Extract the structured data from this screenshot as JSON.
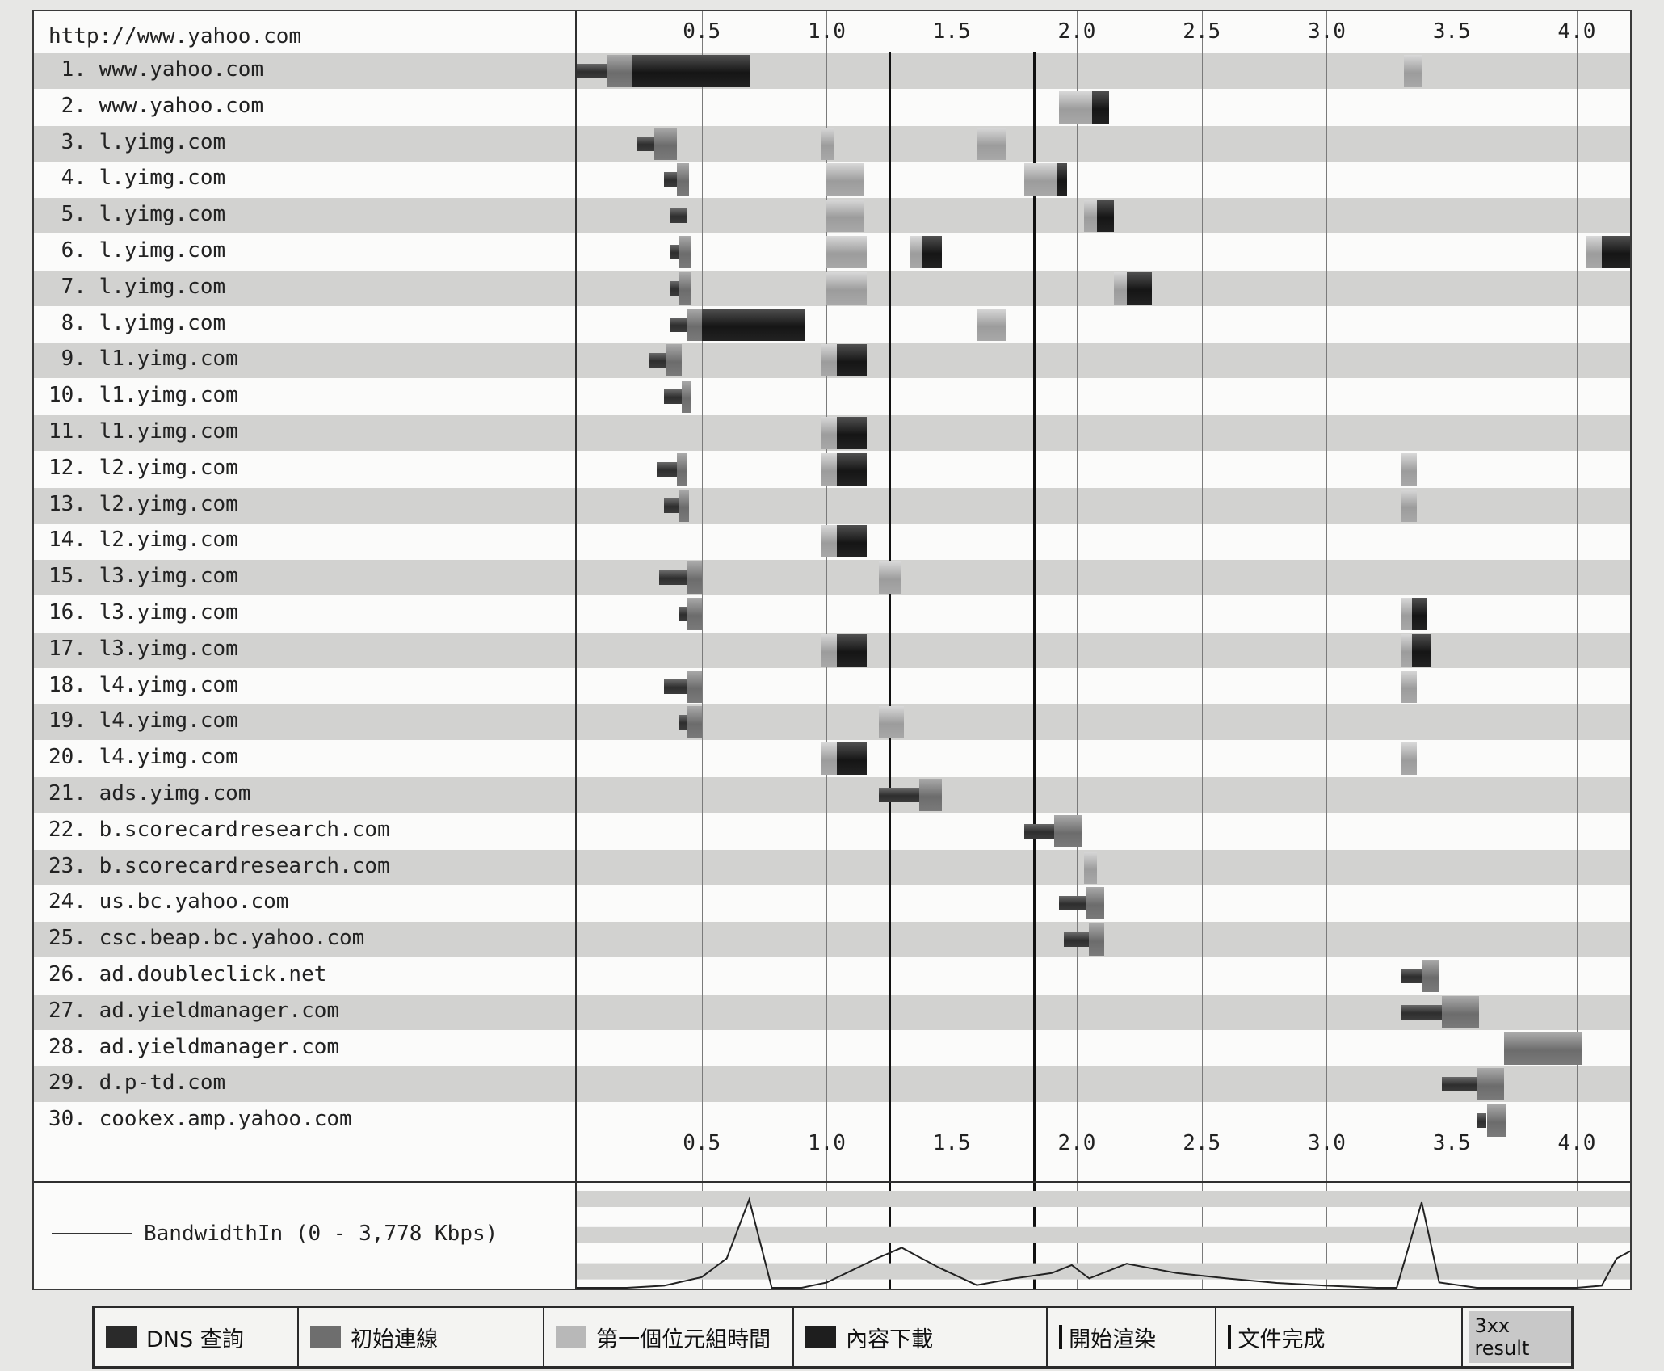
{
  "page": {
    "url": "http://www.yahoo.com",
    "bandwidth_label": "BandwidthIn (0 - 3,778 Kbps)"
  },
  "legend": {
    "dns": "DNS 查詢",
    "connect": "初始連線",
    "ttfb": "第一個位元組時間",
    "download": "內容下載",
    "start_render": "開始渲染",
    "doc_complete": "文件完成",
    "redirect": "3xx result"
  },
  "chart_data": {
    "type": "waterfall",
    "x_ticks": [
      "0.5",
      "1.0",
      "1.5",
      "2.0",
      "2.5",
      "3.0",
      "3.5",
      "4.0"
    ],
    "x_tick_values": [
      0.5,
      1.0,
      1.5,
      2.0,
      2.5,
      3.0,
      3.5,
      4.0
    ],
    "xlim": [
      0.0,
      4.22
    ],
    "unit": "seconds",
    "markers": {
      "start_render": 1.25,
      "document_complete": 1.83
    },
    "requests": [
      {
        "label": " 1. www.yahoo.com",
        "segments": [
          [
            "dns",
            0.0,
            0.12
          ],
          [
            "connect",
            0.12,
            0.22
          ],
          [
            "download",
            0.22,
            0.69
          ],
          [
            "ttfb",
            3.31,
            3.38
          ]
        ]
      },
      {
        "label": " 2. www.yahoo.com",
        "segments": [
          [
            "ttfb",
            1.93,
            2.06
          ],
          [
            "download",
            2.06,
            2.13
          ]
        ]
      },
      {
        "label": " 3. l.yimg.com",
        "segments": [
          [
            "dns",
            0.24,
            0.31
          ],
          [
            "connect",
            0.31,
            0.4
          ],
          [
            "ttfb",
            0.98,
            1.03
          ],
          [
            "ttfb",
            1.6,
            1.72
          ]
        ]
      },
      {
        "label": " 4. l.yimg.com",
        "segments": [
          [
            "dns",
            0.35,
            0.4
          ],
          [
            "connect",
            0.4,
            0.45
          ],
          [
            "ttfb",
            1.0,
            1.15
          ],
          [
            "ttfb",
            1.79,
            1.92
          ],
          [
            "download",
            1.92,
            1.96
          ]
        ]
      },
      {
        "label": " 5. l.yimg.com",
        "segments": [
          [
            "dns",
            0.37,
            0.44
          ],
          [
            "ttfb",
            1.0,
            1.15
          ],
          [
            "ttfb",
            2.03,
            2.08
          ],
          [
            "download",
            2.08,
            2.15
          ]
        ]
      },
      {
        "label": " 6. l.yimg.com",
        "segments": [
          [
            "dns",
            0.37,
            0.41
          ],
          [
            "connect",
            0.41,
            0.46
          ],
          [
            "ttfb",
            1.0,
            1.16
          ],
          [
            "ttfb",
            1.33,
            1.38
          ],
          [
            "download",
            1.38,
            1.46
          ],
          [
            "ttfb",
            4.04,
            4.1
          ],
          [
            "download",
            4.1,
            4.22
          ]
        ]
      },
      {
        "label": " 7. l.yimg.com",
        "segments": [
          [
            "dns",
            0.37,
            0.41
          ],
          [
            "connect",
            0.41,
            0.46
          ],
          [
            "ttfb",
            1.0,
            1.16
          ],
          [
            "ttfb",
            2.15,
            2.2
          ],
          [
            "download",
            2.2,
            2.3
          ]
        ]
      },
      {
        "label": " 8. l.yimg.com",
        "segments": [
          [
            "dns",
            0.37,
            0.44
          ],
          [
            "connect",
            0.44,
            0.5
          ],
          [
            "download",
            0.5,
            0.91
          ],
          [
            "ttfb",
            1.6,
            1.72
          ]
        ]
      },
      {
        "label": " 9. l1.yimg.com",
        "segments": [
          [
            "dns",
            0.29,
            0.36
          ],
          [
            "connect",
            0.36,
            0.42
          ],
          [
            "ttfb",
            0.98,
            1.04
          ],
          [
            "download",
            1.04,
            1.16
          ]
        ]
      },
      {
        "label": "10. l1.yimg.com",
        "segments": [
          [
            "dns",
            0.35,
            0.42
          ],
          [
            "connect",
            0.42,
            0.46
          ]
        ]
      },
      {
        "label": "11. l1.yimg.com",
        "segments": [
          [
            "ttfb",
            0.98,
            1.04
          ],
          [
            "download",
            1.04,
            1.16
          ]
        ]
      },
      {
        "label": "12. l2.yimg.com",
        "segments": [
          [
            "dns",
            0.32,
            0.4
          ],
          [
            "connect",
            0.4,
            0.44
          ],
          [
            "ttfb",
            0.98,
            1.04
          ],
          [
            "download",
            1.04,
            1.16
          ],
          [
            "ttfb",
            3.3,
            3.36
          ]
        ]
      },
      {
        "label": "13. l2.yimg.com",
        "segments": [
          [
            "dns",
            0.35,
            0.41
          ],
          [
            "connect",
            0.41,
            0.45
          ],
          [
            "ttfb",
            3.3,
            3.36
          ]
        ]
      },
      {
        "label": "14. l2.yimg.com",
        "segments": [
          [
            "ttfb",
            0.98,
            1.04
          ],
          [
            "download",
            1.04,
            1.16
          ]
        ]
      },
      {
        "label": "15. l3.yimg.com",
        "segments": [
          [
            "dns",
            0.33,
            0.44
          ],
          [
            "connect",
            0.44,
            0.5
          ],
          [
            "ttfb",
            1.21,
            1.3
          ]
        ]
      },
      {
        "label": "16. l3.yimg.com",
        "segments": [
          [
            "dns",
            0.41,
            0.44
          ],
          [
            "connect",
            0.44,
            0.5
          ],
          [
            "ttfb",
            3.3,
            3.34
          ],
          [
            "download",
            3.34,
            3.4
          ]
        ]
      },
      {
        "label": "17. l3.yimg.com",
        "segments": [
          [
            "ttfb",
            0.98,
            1.04
          ],
          [
            "download",
            1.04,
            1.16
          ],
          [
            "ttfb",
            3.3,
            3.34
          ],
          [
            "download",
            3.34,
            3.42
          ]
        ]
      },
      {
        "label": "18. l4.yimg.com",
        "segments": [
          [
            "dns",
            0.35,
            0.44
          ],
          [
            "connect",
            0.44,
            0.5
          ],
          [
            "ttfb",
            3.3,
            3.36
          ]
        ]
      },
      {
        "label": "19. l4.yimg.com",
        "segments": [
          [
            "dns",
            0.41,
            0.44
          ],
          [
            "connect",
            0.44,
            0.5
          ],
          [
            "ttfb",
            1.21,
            1.31
          ]
        ]
      },
      {
        "label": "20. l4.yimg.com",
        "segments": [
          [
            "ttfb",
            0.98,
            1.04
          ],
          [
            "download",
            1.04,
            1.16
          ],
          [
            "ttfb",
            3.3,
            3.36
          ]
        ]
      },
      {
        "label": "21. ads.yimg.com",
        "segments": [
          [
            "dns",
            1.21,
            1.37
          ],
          [
            "connect",
            1.37,
            1.46
          ]
        ]
      },
      {
        "label": "22. b.scorecardresearch.com",
        "segments": [
          [
            "dns",
            1.79,
            1.91
          ],
          [
            "connect",
            1.91,
            2.02
          ]
        ]
      },
      {
        "label": "23. b.scorecardresearch.com",
        "segments": [
          [
            "ttfb",
            2.03,
            2.08
          ]
        ]
      },
      {
        "label": "24. us.bc.yahoo.com",
        "segments": [
          [
            "dns",
            1.93,
            2.04
          ],
          [
            "connect",
            2.04,
            2.11
          ]
        ]
      },
      {
        "label": "25. csc.beap.bc.yahoo.com",
        "segments": [
          [
            "dns",
            1.95,
            2.05
          ],
          [
            "connect",
            2.05,
            2.11
          ]
        ]
      },
      {
        "label": "26. ad.doubleclick.net",
        "segments": [
          [
            "dns",
            3.3,
            3.38
          ],
          [
            "connect",
            3.38,
            3.45
          ]
        ]
      },
      {
        "label": "27. ad.yieldmanager.com",
        "segments": [
          [
            "dns",
            3.3,
            3.46
          ],
          [
            "connect",
            3.46,
            3.61
          ]
        ]
      },
      {
        "label": "28. ad.yieldmanager.com",
        "segments": [
          [
            "connect",
            3.71,
            4.02
          ]
        ]
      },
      {
        "label": "29. d.p-td.com",
        "segments": [
          [
            "dns",
            3.46,
            3.6
          ],
          [
            "connect",
            3.6,
            3.71
          ]
        ]
      },
      {
        "label": "30. cookex.amp.yahoo.com",
        "segments": [
          [
            "dns",
            3.6,
            3.64
          ],
          [
            "connect",
            3.64,
            3.72
          ]
        ]
      }
    ],
    "bandwidth": {
      "max_kbps": 3778,
      "x": [
        0.0,
        0.2,
        0.35,
        0.5,
        0.6,
        0.69,
        0.78,
        0.9,
        1.0,
        1.2,
        1.3,
        1.45,
        1.6,
        1.75,
        1.9,
        1.98,
        2.05,
        2.2,
        2.4,
        2.6,
        2.8,
        3.0,
        3.2,
        3.28,
        3.38,
        3.45,
        3.6,
        3.8,
        4.0,
        4.1,
        4.16,
        4.22
      ],
      "y": [
        0,
        0,
        80,
        400,
        1100,
        3300,
        0,
        0,
        200,
        1100,
        1500,
        750,
        100,
        350,
        550,
        850,
        350,
        900,
        550,
        350,
        180,
        80,
        0,
        0,
        3200,
        200,
        0,
        0,
        0,
        80,
        1100,
        1400
      ]
    }
  }
}
